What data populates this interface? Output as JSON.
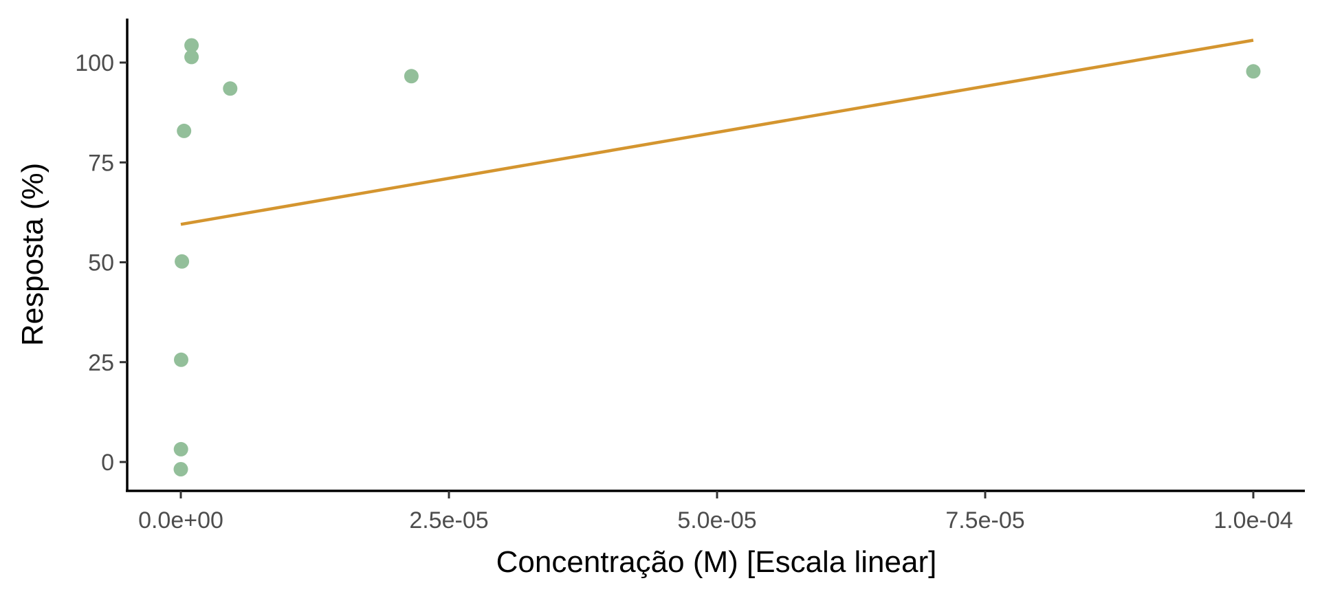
{
  "chart_data": {
    "type": "scatter",
    "title": "",
    "xlabel": "Concentração (M) [Escala linear]",
    "ylabel": "Resposta (%)",
    "xlim": [
      -5e-06,
      0.000105
    ],
    "ylim": [
      -7,
      111
    ],
    "x_ticks": [
      {
        "value": 0,
        "label": "0.0e+00"
      },
      {
        "value": 2.5e-05,
        "label": "2.5e-05"
      },
      {
        "value": 5e-05,
        "label": "5.0e-05"
      },
      {
        "value": 7.5e-05,
        "label": "7.5e-05"
      },
      {
        "value": 0.0001,
        "label": "1.0e-04"
      }
    ],
    "y_ticks": [
      {
        "value": 0,
        "label": "0"
      },
      {
        "value": 25,
        "label": "25"
      },
      {
        "value": 50,
        "label": "50"
      },
      {
        "value": 75,
        "label": "75"
      },
      {
        "value": 100,
        "label": "100"
      }
    ],
    "grid": false,
    "series": [
      {
        "type": "scatter",
        "color": "#93bf9a",
        "points": [
          {
            "x": 0,
            "y": -1.8
          },
          {
            "x": 1e-08,
            "y": 3.2
          },
          {
            "x": 3e-08,
            "y": 25.6
          },
          {
            "x": 1e-07,
            "y": 50.2
          },
          {
            "x": 3e-07,
            "y": 82.9
          },
          {
            "x": 1e-06,
            "y": 104.3
          },
          {
            "x": 1e-06,
            "y": 101.4
          },
          {
            "x": 4.6e-06,
            "y": 93.5
          },
          {
            "x": 2.15e-05,
            "y": 96.6
          },
          {
            "x": 0.0001,
            "y": 97.8
          }
        ]
      },
      {
        "type": "line",
        "color": "#d4952f",
        "points": [
          {
            "x": 0,
            "y": 59.5
          },
          {
            "x": 0.0001,
            "y": 105.6
          }
        ]
      }
    ]
  }
}
